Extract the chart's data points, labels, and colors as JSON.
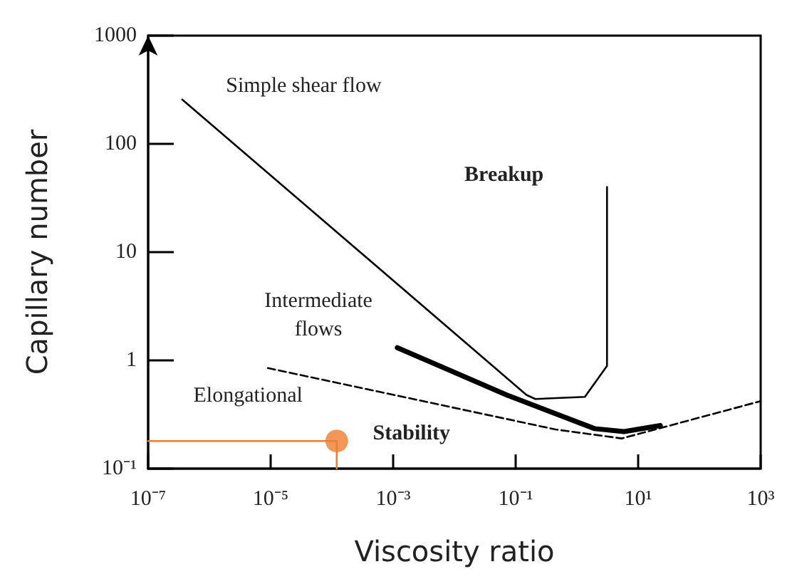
{
  "chart_data": {
    "type": "line",
    "xlabel": "Viscosity ratio",
    "ylabel": "Capillary number",
    "log": "xy",
    "grid": false,
    "marker": "none",
    "xlim": [
      1e-07,
      1000
    ],
    "ylim": [
      0.1,
      1000
    ],
    "xticks": [
      {
        "value": 1e-07,
        "label": "10⁻⁷"
      },
      {
        "value": 1e-05,
        "label": "10⁻⁵"
      },
      {
        "value": 0.001,
        "label": "10⁻³"
      },
      {
        "value": 0.1,
        "label": "10⁻¹"
      },
      {
        "value": 10,
        "label": "10¹"
      },
      {
        "value": 1000,
        "label": "10³"
      }
    ],
    "yticks": [
      {
        "value": 0.1,
        "label": "10⁻¹"
      },
      1,
      10,
      100,
      1000
    ],
    "series": [
      {
        "color": "#000000",
        "line_style": "solid",
        "x": [
          3.6e-07,
          0.15,
          0.21,
          1.35,
          3.1,
          3.1
        ],
        "values": [
          257,
          0.48,
          0.44,
          0.46,
          0.89,
          40
        ]
      },
      {
        "color": "#000000",
        "line_style": "solid",
        "x": [
          0.00117,
          0.071,
          1.95,
          5.9,
          23
        ],
        "values": [
          1.31,
          0.48,
          0.234,
          0.22,
          0.25
        ]
      },
      {
        "color": "#000000",
        "line_style": "dashed",
        "x": [
          9e-06,
          0.45,
          5.4,
          1000
        ],
        "values": [
          0.85,
          0.23,
          0.19,
          0.42
        ]
      },
      {
        "color": "#ed7d31",
        "line_style": "solid",
        "x": [
          1e-07,
          0.00012,
          0.00012
        ],
        "values": [
          0.18,
          0.18,
          0.1
        ]
      },
      {
        "type": "scatter",
        "color": "#ed7d31",
        "marker": "circle",
        "x": [
          0.00012
        ],
        "values": [
          0.18
        ]
      }
    ],
    "annotations": [
      "Simple shear flow",
      "Breakup",
      "Intermediate\nflows",
      "Elongational",
      "Stability"
    ]
  }
}
